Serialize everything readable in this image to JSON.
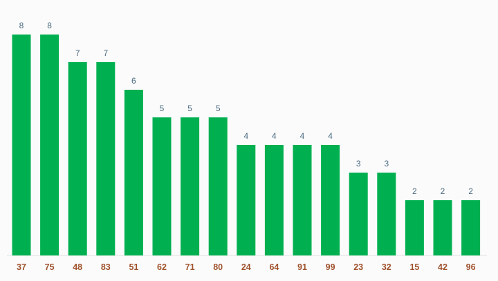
{
  "chart_data": {
    "type": "bar",
    "categories": [
      "37",
      "75",
      "48",
      "83",
      "51",
      "62",
      "71",
      "80",
      "24",
      "64",
      "91",
      "99",
      "23",
      "32",
      "15",
      "42",
      "96"
    ],
    "values": [
      8,
      8,
      7,
      7,
      6,
      5,
      5,
      5,
      4,
      4,
      4,
      4,
      3,
      3,
      2,
      2,
      2
    ],
    "title": "",
    "xlabel": "",
    "ylabel": "",
    "ylim": [
      0,
      8
    ],
    "grid": false,
    "legend": "none",
    "data_labels": true
  },
  "colors": {
    "bar": "#00b050",
    "value_label": "#4a6a80",
    "tick_label": "#a0522d",
    "background": "#fbfbfb"
  }
}
